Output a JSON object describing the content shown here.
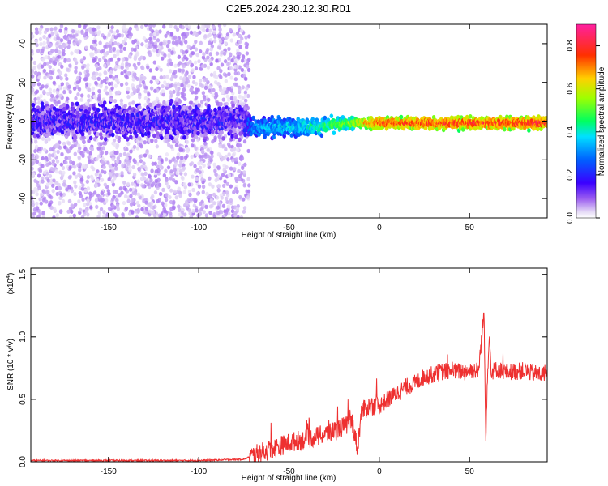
{
  "title": "C2E5.2024.230.12.30.R01",
  "chart_data": [
    {
      "type": "heatmap",
      "title": "C2E5.2024.230.12.30.R01",
      "xlabel": "Height of straight line (km)",
      "ylabel": "Frequency (Hz)",
      "xlim": [
        -193,
        93
      ],
      "ylim": [
        -50,
        50
      ],
      "xticks": [
        -150,
        -100,
        -50,
        0,
        50
      ],
      "yticks": [
        -40,
        -20,
        0,
        20,
        40
      ],
      "colorbar": {
        "label": "Normalized spectral amplitude",
        "range": [
          0,
          0.9
        ],
        "ticks": [
          0.0,
          0.2,
          0.4,
          0.6,
          0.8
        ],
        "colormap": [
          "#ffffff",
          "#d9c6f2",
          "#6a00e8",
          "#2020ff",
          "#00c8ff",
          "#00ff80",
          "#c8ff00",
          "#ffb000",
          "#ff2020",
          "#ff40a0"
        ]
      },
      "band": {
        "description_points": [
          {
            "x": -190,
            "center": 0,
            "halfwidth": 8,
            "amplitude": 0.15
          },
          {
            "x": -75,
            "center": 0,
            "halfwidth": 8,
            "amplitude": 0.15
          },
          {
            "x": -70,
            "center": -3,
            "halfwidth": 5,
            "amplitude": 0.3
          },
          {
            "x": -40,
            "center": -3,
            "halfwidth": 4,
            "amplitude": 0.4
          },
          {
            "x": -15,
            "center": -1,
            "halfwidth": 3,
            "amplitude": 0.55
          },
          {
            "x": 0,
            "center": -1,
            "halfwidth": 3,
            "amplitude": 0.75
          },
          {
            "x": 90,
            "center": -1,
            "halfwidth": 3,
            "amplitude": 0.8
          }
        ]
      }
    },
    {
      "type": "line",
      "xlabel": "Height of straight line (km)",
      "ylabel": "SNR (10 * v/v)",
      "yscale_label": "(x10",
      "yscale_exp": "4",
      "yscale_suffix": ")",
      "xlim": [
        -193,
        93
      ],
      "ylim": [
        0,
        1.55
      ],
      "xticks": [
        -150,
        -100,
        -50,
        0,
        50
      ],
      "yticks": [
        0.0,
        0.5,
        1.0,
        1.5
      ],
      "ytick_labels": [
        "0.0",
        "0.5",
        "1.0",
        "1.5"
      ],
      "series_color": "#ee3030",
      "x": [
        -193,
        -150,
        -100,
        -75,
        -70,
        -60,
        -50,
        -45,
        -40,
        -35,
        -30,
        -25,
        -20,
        -15,
        -12,
        -10,
        -5,
        0,
        5,
        10,
        15,
        20,
        25,
        30,
        35,
        40,
        45,
        50,
        55,
        58,
        59,
        60,
        61,
        62,
        65,
        70,
        75,
        80,
        85,
        90,
        93
      ],
      "y": [
        0.01,
        0.01,
        0.01,
        0.02,
        0.05,
        0.1,
        0.15,
        0.17,
        0.18,
        0.2,
        0.22,
        0.25,
        0.28,
        0.32,
        0.1,
        0.4,
        0.45,
        0.45,
        0.5,
        0.55,
        0.6,
        0.63,
        0.68,
        0.7,
        0.72,
        0.73,
        0.72,
        0.73,
        0.73,
        1.2,
        0.2,
        0.75,
        1.0,
        0.72,
        0.74,
        0.72,
        0.72,
        0.73,
        0.71,
        0.7,
        0.72
      ]
    }
  ]
}
